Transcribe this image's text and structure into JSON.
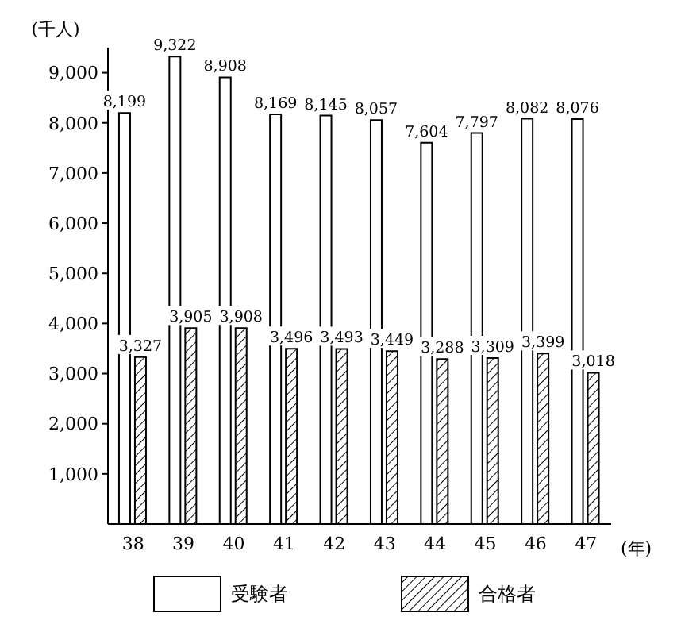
{
  "chart_data": {
    "type": "bar",
    "xlabel": "(年)",
    "ylabel": "(千人)",
    "categories": [
      "38",
      "39",
      "40",
      "41",
      "42",
      "43",
      "44",
      "45",
      "46",
      "47"
    ],
    "series": [
      {
        "name": "受験者",
        "color": "#ffffff",
        "values": [
          8199,
          9322,
          8908,
          8169,
          8145,
          8057,
          7604,
          7797,
          8082,
          8076
        ],
        "value_labels": [
          "8,199",
          "9,322",
          "8,908",
          "8,169",
          "8,145",
          "8,057",
          "7,604",
          "7,797",
          "8,082",
          "8,076"
        ]
      },
      {
        "name": "合格者",
        "color": "#000000",
        "values": [
          3327,
          3905,
          3908,
          3496,
          3493,
          3449,
          3288,
          3309,
          3399,
          3018
        ],
        "value_labels": [
          "3,327",
          "3,905",
          "3,908",
          "3,496",
          "3,493",
          "3,449",
          "3,288",
          "3,309",
          "3,399",
          "3,018"
        ]
      }
    ],
    "ylim": [
      0,
      9500
    ],
    "yticks": [
      {
        "value": 1000,
        "label": "1,000"
      },
      {
        "value": 2000,
        "label": "2,000"
      },
      {
        "value": 3000,
        "label": "3,000"
      },
      {
        "value": 4000,
        "label": "4,000"
      },
      {
        "value": 5000,
        "label": "5,000"
      },
      {
        "value": 6000,
        "label": "6,000"
      },
      {
        "value": 7000,
        "label": "7,000"
      },
      {
        "value": 8000,
        "label": "8,000"
      },
      {
        "value": 9000,
        "label": "9,000"
      }
    ],
    "grid": false,
    "legend": "bottom"
  }
}
